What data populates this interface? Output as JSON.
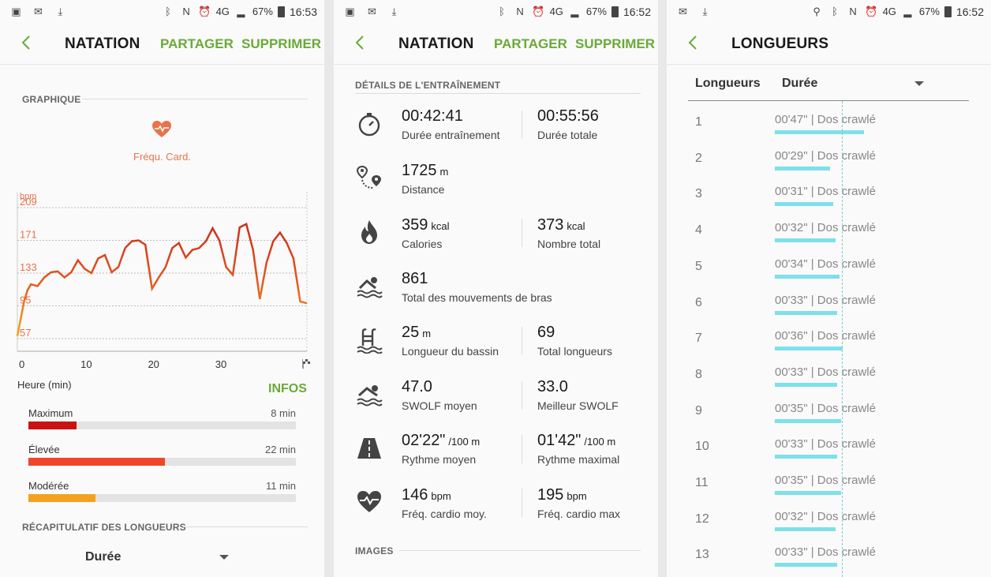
{
  "screen1": {
    "status": {
      "time": "16:53",
      "battery": "67%",
      "network": "4G"
    },
    "title": "NATATION",
    "share": "PARTAGER",
    "delete": "SUPPRIMER",
    "graph_section": "GRAPHIQUE",
    "hr_label": "Fréqu. Card.",
    "chart_data": {
      "type": "line",
      "title": "",
      "ylabel": "bpm",
      "xlabel": "Heure (min)",
      "yticks": [
        "209",
        "171",
        "133",
        "95",
        "57"
      ],
      "xticks": [
        "0",
        "10",
        "20",
        "30"
      ],
      "ylim": [
        57,
        209
      ],
      "xlim": [
        0,
        43
      ],
      "grid": true,
      "x": [
        0,
        0.5,
        1,
        1.5,
        2,
        3,
        4,
        5,
        6,
        7,
        8,
        9,
        10,
        11,
        12,
        13,
        14,
        15,
        16,
        17,
        18,
        19,
        20,
        21,
        22,
        23,
        24,
        25,
        26,
        27,
        28,
        29,
        30,
        31,
        32,
        33,
        34,
        35,
        36,
        37,
        38,
        39,
        40,
        41,
        42,
        43
      ],
      "y": [
        60,
        80,
        100,
        113,
        120,
        118,
        128,
        134,
        135,
        128,
        134,
        148,
        138,
        133,
        150,
        154,
        134,
        140,
        162,
        170,
        171,
        166,
        115,
        128,
        140,
        162,
        168,
        151,
        160,
        162,
        170,
        185,
        171,
        140,
        131,
        186,
        190,
        160,
        103,
        145,
        170,
        180,
        168,
        150,
        100,
        98
      ]
    },
    "infos": "INFOS",
    "zones": [
      {
        "name": "Maximum",
        "value": "8 min",
        "fraction": 0.18,
        "color": "#cc1111"
      },
      {
        "name": "Élevée",
        "value": "22 min",
        "fraction": 0.51,
        "color": "#f0452a"
      },
      {
        "name": "Modérée",
        "value": "11 min",
        "fraction": 0.25,
        "color": "#f4a21e"
      }
    ],
    "lengths_section": "RÉCAPITULATIF DES LONGUEURS",
    "dropdown": "Durée"
  },
  "screen2": {
    "status": {
      "time": "16:52",
      "battery": "67%",
      "network": "4G"
    },
    "title": "NATATION",
    "share": "PARTAGER",
    "delete": "SUPPRIMER",
    "details_section": "DÉTAILS DE L'ENTRAÎNEMENT",
    "images_section": "IMAGES",
    "stats": [
      {
        "icon": "stopwatch-icon",
        "v1": "00:42:41",
        "u1": "",
        "l1": "Durée entraînement",
        "v2": "00:55:56",
        "u2": "",
        "l2": "Durée totale"
      },
      {
        "icon": "route-icon",
        "v1": "1725",
        "u1": "m",
        "l1": "Distance",
        "v2": "",
        "u2": "",
        "l2": ""
      },
      {
        "icon": "flame-icon",
        "v1": "359",
        "u1": "kcal",
        "l1": "Calories",
        "v2": "373",
        "u2": "kcal",
        "l2": "Nombre total"
      },
      {
        "icon": "swimmer-icon",
        "v1": "861",
        "u1": "",
        "l1": "Total des mouvements de bras",
        "v2": "",
        "u2": "",
        "l2": ""
      },
      {
        "icon": "pool-ladder-icon",
        "v1": "25",
        "u1": "m",
        "l1": "Longueur du bassin",
        "v2": "69",
        "u2": "",
        "l2": "Total longueurs"
      },
      {
        "icon": "swolf-icon",
        "v1": "47.0",
        "u1": "",
        "l1": "SWOLF moyen",
        "v2": "33.0",
        "u2": "",
        "l2": "Meilleur SWOLF"
      },
      {
        "icon": "road-icon",
        "v1": "02'22\"",
        "u1": "/100 m",
        "l1": "Rythme moyen",
        "v2": "01'42\"",
        "u2": "/100 m",
        "l2": "Rythme maximal"
      },
      {
        "icon": "heart-pulse-icon",
        "v1": "146",
        "u1": "bpm",
        "l1": "Fréq. cardio moy.",
        "v2": "195",
        "u2": "bpm",
        "l2": "Fréq. cardio max"
      }
    ]
  },
  "screen3": {
    "status": {
      "time": "16:52",
      "battery": "67%",
      "network": "4G"
    },
    "title": "LONGUEURS",
    "col1": "Longueurs",
    "col2": "Durée",
    "rows": [
      {
        "n": "1",
        "dur": "00'47\" | Dos crawlé",
        "sec": 47
      },
      {
        "n": "2",
        "dur": "00'29\" | Dos crawlé",
        "sec": 29
      },
      {
        "n": "3",
        "dur": "00'31\" | Dos crawlé",
        "sec": 31
      },
      {
        "n": "4",
        "dur": "00'32\" | Dos crawlé",
        "sec": 32
      },
      {
        "n": "5",
        "dur": "00'34\" | Dos crawlé",
        "sec": 34
      },
      {
        "n": "6",
        "dur": "00'33\" | Dos crawlé",
        "sec": 33
      },
      {
        "n": "7",
        "dur": "00'36\" | Dos crawlé",
        "sec": 36
      },
      {
        "n": "8",
        "dur": "00'33\" | Dos crawlé",
        "sec": 33
      },
      {
        "n": "9",
        "dur": "00'35\" | Dos crawlé",
        "sec": 35
      },
      {
        "n": "10",
        "dur": "00'33\" | Dos crawlé",
        "sec": 33
      },
      {
        "n": "11",
        "dur": "00'35\" | Dos crawlé",
        "sec": 35
      },
      {
        "n": "12",
        "dur": "00'32\" | Dos crawlé",
        "sec": 32
      },
      {
        "n": "13",
        "dur": "00'33\" | Dos crawlé",
        "sec": 33
      }
    ]
  }
}
